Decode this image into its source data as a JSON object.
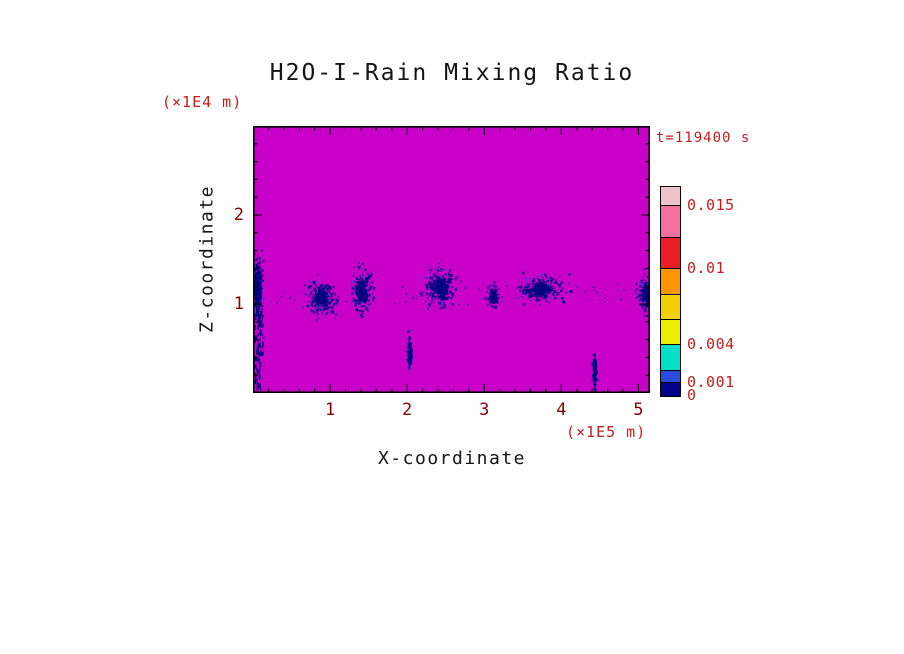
{
  "colors": {
    "background": "#FFFFFF",
    "ink": "#141414",
    "tick_label_red": "#8B0000",
    "annotation_red": "#C41E1E",
    "frame": "#000000",
    "speckle_navy": "#000080",
    "speckle_blue": "#3A3AD0"
  },
  "title": {
    "text": "H2O-I-Rain Mixing Ratio"
  },
  "annotations": {
    "time": "t=119400 s",
    "z_units": "(×1E4 m)",
    "x_units": "(×1E5 m)"
  },
  "axes": {
    "x_label": "X-coordinate",
    "z_label": "Z-coordinate",
    "x_tick_labels": [
      "1",
      "2",
      "3",
      "4",
      "5"
    ],
    "z_tick_labels": [
      "1",
      "2"
    ]
  },
  "colorbar": {
    "vmax": 0.0165,
    "labels": [
      {
        "text": "0.015",
        "value": 0.015
      },
      {
        "text": "0.01",
        "value": 0.01
      },
      {
        "text": "0.004",
        "value": 0.004
      },
      {
        "text": "0.001",
        "value": 0.001
      },
      {
        "text": "0",
        "value": 0
      }
    ],
    "segments_bottom_to_top": [
      {
        "from": 0,
        "to": 0.001,
        "color": "#00008B"
      },
      {
        "from": 0.001,
        "to": 0.002,
        "color": "#2A4BDE"
      },
      {
        "from": 0.002,
        "to": 0.004,
        "color": "#00DFC8"
      },
      {
        "from": 0.004,
        "to": 0.006,
        "color": "#EDED00"
      },
      {
        "from": 0.006,
        "to": 0.008,
        "color": "#F2CF00"
      },
      {
        "from": 0.008,
        "to": 0.01,
        "color": "#FF9500"
      },
      {
        "from": 0.01,
        "to": 0.0125,
        "color": "#EC1C24"
      },
      {
        "from": 0.0125,
        "to": 0.015,
        "color": "#F4709F"
      },
      {
        "from": 0.015,
        "to": 0.0165,
        "color": "#EFC2CE"
      }
    ]
  },
  "chart_data": {
    "type": "heatmap",
    "title": "H2O-I-Rain Mixing Ratio",
    "xlabel": "X-coordinate",
    "ylabel": "Z-coordinate",
    "x_units": "(×1E5 m)",
    "y_units": "(×1E4 m)",
    "time_label": "t=119400 s",
    "xlim": [
      0,
      5.15
    ],
    "zlim": [
      0,
      3.0
    ],
    "x_major_ticks": [
      1,
      2,
      3,
      4,
      5
    ],
    "z_major_ticks": [
      1,
      2
    ],
    "minor_tick_step": 0.2,
    "colorbar_levels": [
      0,
      0.001,
      0.002,
      0.004,
      0.006,
      0.008,
      0.01,
      0.0125,
      0.015
    ],
    "colorbar_labeled_levels": [
      0,
      0.001,
      0.004,
      0.01,
      0.015
    ],
    "background_color": "#C800C8",
    "field_description": "Field is near zero (magenta background) everywhere except speckled low-value rain cells (0 to 0.001) in a band near z=1 (x1E4 m), with narrow fall streaks reaching the surface near x=0.05, x=2.0 and x=4.4 (x1E5 m)",
    "rain_features": {
      "clusters": [
        {
          "x": 0.05,
          "z": 1.2,
          "sx": 0.07,
          "sz": 0.3,
          "n": 300
        },
        {
          "x": 0.88,
          "z": 1.08,
          "sx": 0.16,
          "sz": 0.17,
          "n": 280
        },
        {
          "x": 1.4,
          "z": 1.15,
          "sx": 0.12,
          "sz": 0.22,
          "n": 240
        },
        {
          "x": 2.42,
          "z": 1.2,
          "sx": 0.2,
          "sz": 0.2,
          "n": 280
        },
        {
          "x": 3.1,
          "z": 1.1,
          "sx": 0.08,
          "sz": 0.12,
          "n": 100
        },
        {
          "x": 3.72,
          "z": 1.18,
          "sx": 0.27,
          "sz": 0.13,
          "n": 260
        },
        {
          "x": 5.08,
          "z": 1.12,
          "sx": 0.1,
          "sz": 0.18,
          "n": 150
        },
        {
          "x": 2.02,
          "z": 0.45,
          "sx": 0.025,
          "sz": 0.2,
          "n": 90
        },
        {
          "x": 4.42,
          "z": 0.25,
          "sx": 0.025,
          "sz": 0.2,
          "n": 100
        }
      ],
      "streaks": [
        {
          "x": 0.05,
          "z_top": 1.0,
          "z_bottom": 0.0,
          "w": 0.045,
          "density": 0.92
        },
        {
          "x": 0.1,
          "z_top": 0.95,
          "z_bottom": 0.45,
          "w": 0.03,
          "density": 0.7
        }
      ],
      "scatter_band": {
        "z": 1.12,
        "sz": 0.1,
        "n": 100
      }
    }
  }
}
